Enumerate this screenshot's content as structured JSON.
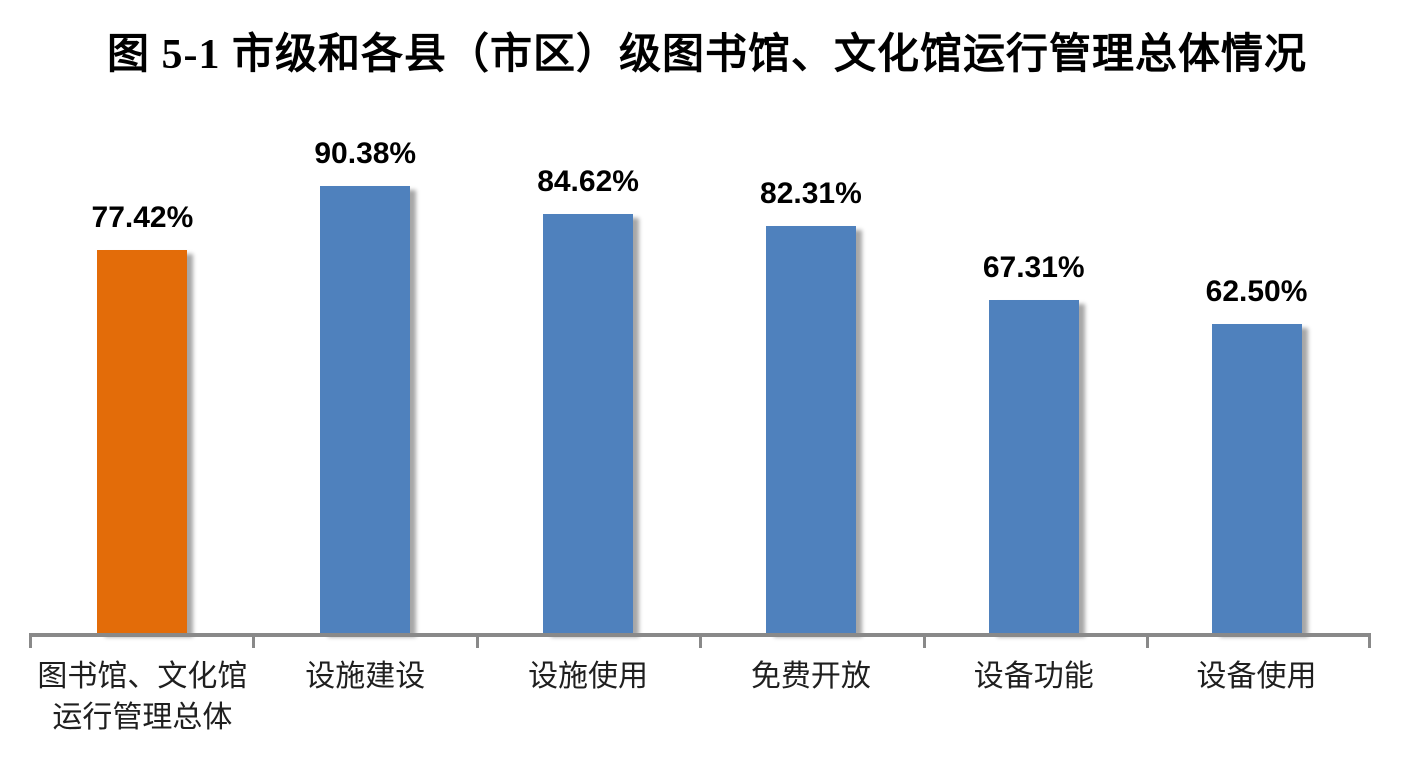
{
  "title": "图 5-1 市级和各县（市区）级图书馆、文化馆运行管理总体情况",
  "colors": {
    "bar_highlight": "#E36C09",
    "bar_default": "#4F81BD",
    "axis": "#898989",
    "text": "#000000"
  },
  "chart_data": {
    "type": "bar",
    "title": "图 5-1 市级和各县（市区）级图书馆、文化馆运行管理总体情况",
    "categories": [
      "图书馆、文化馆运行管理总体",
      "设施建设",
      "设施使用",
      "免费开放",
      "设备功能",
      "设备使用"
    ],
    "values": [
      77.42,
      90.38,
      84.62,
      82.31,
      67.31,
      62.5
    ],
    "data_labels": [
      "77.42%",
      "90.38%",
      "84.62%",
      "82.31%",
      "67.31%",
      "62.50%"
    ],
    "bar_colors": [
      "#E36C09",
      "#4F81BD",
      "#4F81BD",
      "#4F81BD",
      "#4F81BD",
      "#4F81BD"
    ],
    "highlight_index": 0,
    "xlabel": "",
    "ylabel": "",
    "ylim": [
      0,
      100
    ],
    "gridlines": false,
    "legend": "none"
  }
}
